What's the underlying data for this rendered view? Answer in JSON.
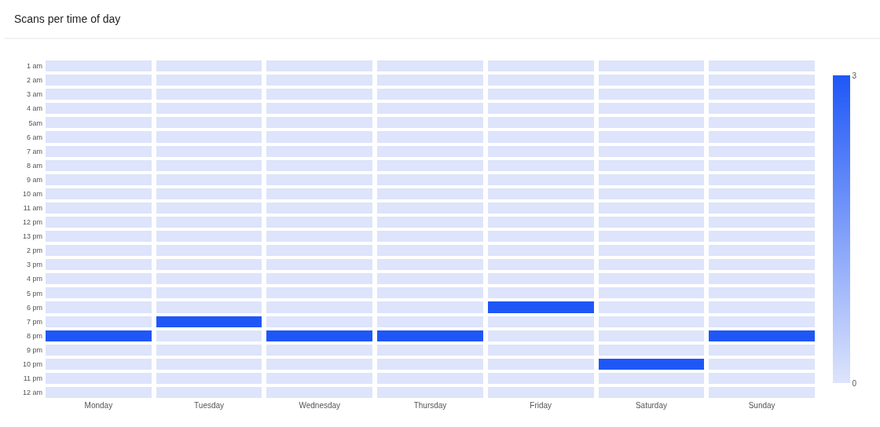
{
  "chart_data": {
    "type": "heatmap",
    "title": "Scans per time of day",
    "categories": [
      "Monday",
      "Tuesday",
      "Wednesday",
      "Thursday",
      "Friday",
      "Saturday",
      "Sunday"
    ],
    "y_categories": [
      "1 am",
      "2 am",
      "3 am",
      "4 am",
      "5am",
      "6 am",
      "7 am",
      "8 am",
      "9 am",
      "10 am",
      "11 am",
      "12 pm",
      "13 pm",
      "2 pm",
      "3 pm",
      "4 pm",
      "5 pm",
      "6 pm",
      "7 pm",
      "8 pm",
      "9 pm",
      "10 pm",
      "11 pm",
      "12 am"
    ],
    "cells": [
      [
        0,
        0,
        0,
        0,
        0,
        0,
        0
      ],
      [
        0,
        0,
        0,
        0,
        0,
        0,
        0
      ],
      [
        0,
        0,
        0,
        0,
        0,
        0,
        0
      ],
      [
        0,
        0,
        0,
        0,
        0,
        0,
        0
      ],
      [
        0,
        0,
        0,
        0,
        0,
        0,
        0
      ],
      [
        0,
        0,
        0,
        0,
        0,
        0,
        0
      ],
      [
        0,
        0,
        0,
        0,
        0,
        0,
        0
      ],
      [
        0,
        0,
        0,
        0,
        0,
        0,
        0
      ],
      [
        0,
        0,
        0,
        0,
        0,
        0,
        0
      ],
      [
        0,
        0,
        0,
        0,
        0,
        0,
        0
      ],
      [
        0,
        0,
        0,
        0,
        0,
        0,
        0
      ],
      [
        0,
        0,
        0,
        0,
        0,
        0,
        0
      ],
      [
        0,
        0,
        0,
        0,
        0,
        0,
        0
      ],
      [
        0,
        0,
        0,
        0,
        0,
        0,
        0
      ],
      [
        0,
        0,
        0,
        0,
        0,
        0,
        0
      ],
      [
        0,
        0,
        0,
        0,
        0,
        0,
        0
      ],
      [
        0,
        0,
        0,
        0,
        0,
        0,
        0
      ],
      [
        0,
        0,
        0,
        0,
        3,
        0,
        0
      ],
      [
        0,
        3,
        0,
        0,
        0,
        0,
        0
      ],
      [
        3,
        0,
        3,
        3,
        0,
        0,
        3
      ],
      [
        0,
        0,
        0,
        0,
        0,
        0,
        0
      ],
      [
        0,
        0,
        0,
        0,
        0,
        3,
        0
      ],
      [
        0,
        0,
        0,
        0,
        0,
        0,
        0
      ],
      [
        0,
        0,
        0,
        0,
        0,
        0,
        0
      ]
    ],
    "clim": [
      0,
      3
    ],
    "cticks": [
      0,
      3
    ]
  }
}
